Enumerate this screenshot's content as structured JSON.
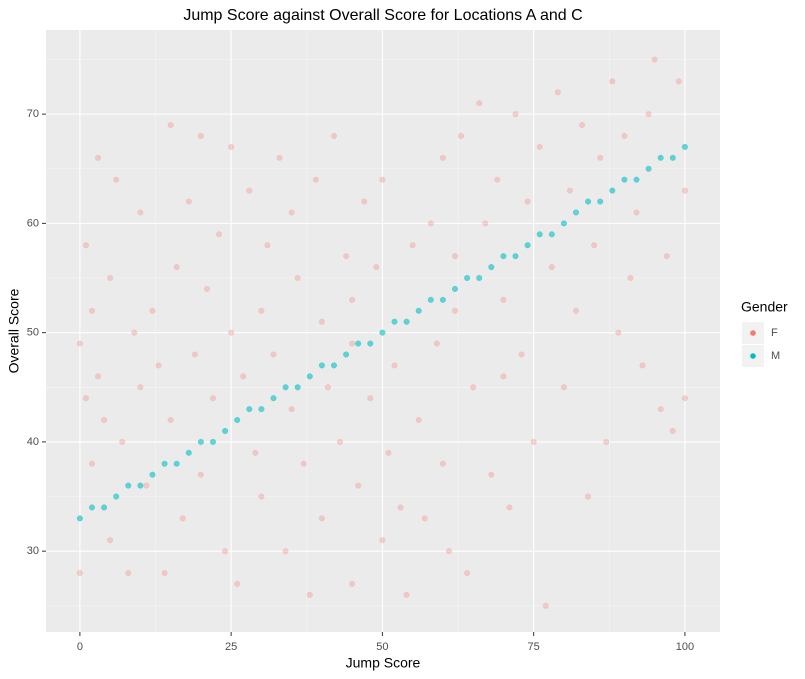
{
  "chart_data": {
    "type": "scatter",
    "title": "Jump Score against Overall Score for Locations A and C",
    "x_label": "Jump Score",
    "y_label": "Overall Score",
    "legend_title": "Gender",
    "legend_position": "right",
    "grid": true,
    "xlim": [
      -5.6,
      105.8
    ],
    "xticks": [
      0,
      25,
      50,
      75,
      100
    ],
    "x_minor_ticks": [
      12.5,
      37.5,
      62.5,
      87.5
    ],
    "ylim": [
      22.6,
      77.7
    ],
    "yticks": [
      30,
      40,
      50,
      60,
      70
    ],
    "y_minor_ticks": [
      25,
      35,
      45,
      55,
      65,
      75
    ],
    "series": [
      {
        "name": "F",
        "color": "#F8766D",
        "opacity": 0.3,
        "x": [
          0,
          0,
          1,
          1,
          2,
          2,
          3,
          3,
          4,
          5,
          5,
          6,
          7,
          8,
          9,
          10,
          10,
          11,
          12,
          13,
          14,
          15,
          15,
          16,
          17,
          18,
          19,
          20,
          20,
          21,
          22,
          23,
          24,
          25,
          25,
          26,
          27,
          28,
          29,
          30,
          30,
          31,
          32,
          33,
          34,
          35,
          35,
          36,
          37,
          38,
          39,
          40,
          40,
          41,
          42,
          43,
          44,
          45,
          45,
          46,
          47,
          48,
          49,
          50,
          50,
          51,
          52,
          53,
          54,
          55,
          56,
          57,
          58,
          59,
          60,
          60,
          61,
          62,
          63,
          64,
          65,
          66,
          67,
          68,
          69,
          70,
          71,
          72,
          73,
          74,
          75,
          76,
          77,
          78,
          79,
          80,
          81,
          82,
          83,
          84,
          85,
          86,
          87,
          88,
          89,
          90,
          91,
          92,
          93,
          94,
          95,
          96,
          97,
          98,
          99,
          100,
          100,
          62,
          70,
          45
        ],
        "values": [
          49,
          28,
          44,
          58,
          52,
          38,
          66,
          46,
          42,
          55,
          31,
          64,
          40,
          28,
          50,
          61,
          45,
          36,
          52,
          47,
          28,
          69,
          42,
          56,
          33,
          62,
          48,
          68,
          37,
          54,
          44,
          59,
          30,
          67,
          50,
          27,
          46,
          63,
          39,
          52,
          35,
          58,
          48,
          66,
          30,
          61,
          43,
          55,
          38,
          26,
          64,
          51,
          33,
          45,
          68,
          40,
          57,
          27,
          49,
          36,
          62,
          44,
          56,
          31,
          64,
          39,
          47,
          34,
          26,
          58,
          42,
          33,
          60,
          49,
          38,
          66,
          30,
          52,
          68,
          28,
          45,
          71,
          60,
          37,
          64,
          53,
          34,
          70,
          48,
          62,
          40,
          67,
          25,
          56,
          72,
          45,
          63,
          52,
          69,
          35,
          58,
          66,
          40,
          73,
          50,
          68,
          55,
          61,
          47,
          70,
          75,
          43,
          57,
          41,
          73,
          44,
          63,
          57,
          46,
          53
        ]
      },
      {
        "name": "M",
        "color": "#00BFC4",
        "opacity": 0.6,
        "x": [
          0,
          2,
          4,
          6,
          8,
          10,
          12,
          14,
          16,
          18,
          20,
          22,
          24,
          26,
          28,
          30,
          32,
          34,
          36,
          38,
          40,
          42,
          44,
          46,
          48,
          50,
          52,
          54,
          56,
          58,
          60,
          62,
          64,
          66,
          68,
          70,
          72,
          74,
          76,
          78,
          80,
          82,
          84,
          86,
          88,
          90,
          92,
          94,
          96,
          98,
          100
        ],
        "values": [
          33,
          34,
          34,
          35,
          36,
          36,
          37,
          38,
          38,
          39,
          40,
          40,
          41,
          42,
          43,
          43,
          44,
          45,
          45,
          46,
          47,
          47,
          48,
          49,
          49,
          50,
          51,
          51,
          52,
          53,
          53,
          54,
          55,
          55,
          56,
          57,
          57,
          58,
          59,
          59,
          60,
          61,
          62,
          62,
          63,
          64,
          64,
          65,
          66,
          66,
          67
        ]
      }
    ]
  }
}
